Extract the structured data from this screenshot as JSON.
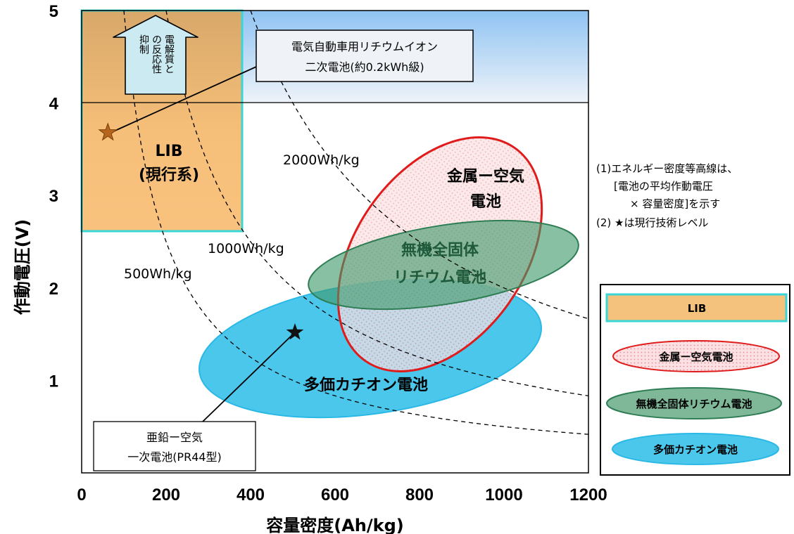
{
  "chart_data": {
    "type": "scatter",
    "xlabel": "容量密度(Ah/kg)",
    "ylabel": "作動電圧(V)",
    "xlim": [
      0,
      1200
    ],
    "ylim": [
      0,
      5
    ],
    "x_ticks": [
      "0",
      "200",
      "400",
      "600",
      "800",
      "1000",
      "1200"
    ],
    "y_ticks": [
      "1",
      "2",
      "3",
      "4",
      "5"
    ],
    "energy_contours": [
      {
        "label": "500Wh/kg",
        "wh_per_kg": 500
      },
      {
        "label": "1000Wh/kg",
        "wh_per_kg": 1000
      },
      {
        "label": "2000Wh/kg",
        "wh_per_kg": 2000
      }
    ],
    "regions": [
      {
        "name": "LIB",
        "label_lines": [
          "LIB",
          "(現行系)"
        ],
        "x_range": [
          0,
          370
        ],
        "y_range": [
          2.6,
          5
        ],
        "color": "#f5c07a"
      },
      {
        "name": "金属ー空気電池",
        "label_lines": [
          "金属ー空気",
          "電池"
        ],
        "center": [
          800,
          2.9
        ],
        "color": "#e32020"
      },
      {
        "name": "無機全固体リチウム電池",
        "label_lines": [
          "無機全固体",
          "リチウム電池"
        ],
        "center": [
          870,
          2.3
        ],
        "color": "#2e8b57"
      },
      {
        "name": "多価カチオン電池",
        "label_lines": [
          "多価カチオン電池"
        ],
        "center": [
          720,
          1.5
        ],
        "color": "#2ec4ec"
      }
    ],
    "points": [
      {
        "name": "電気自動車用リチウムイオン二次電池(約0.2kWh級)",
        "x": 62,
        "y": 3.68
      },
      {
        "name": "亜鉛ー空気一次電池(PR44型)",
        "x": 505,
        "y": 1.52
      }
    ],
    "annotations": {
      "ev_battery": [
        "電気自動車用リチウムイオン",
        "二次電池(約0.2kWh級)"
      ],
      "zinc_air": [
        "亜鉛ー空気",
        "一次電池(PR44型)"
      ],
      "arrow_text": [
        "電解質と",
        "の反応性",
        "抑制"
      ]
    },
    "notes": [
      "(1)エネルギー密度等高線は、",
      "[電池の平均作動電圧",
      "× 容量密度]を示す",
      "(2) ★は現行技術レベル"
    ],
    "legend": {
      "placement": "right",
      "entries": [
        {
          "label": "LIB",
          "color": "#f5c07a"
        },
        {
          "label": "金属ー空気電池",
          "color": "#e32020"
        },
        {
          "label": "無機全固体リチウム電池",
          "color": "#2e8b57"
        },
        {
          "label": "多価カチオン電池",
          "color": "#2ec4ec"
        }
      ]
    }
  }
}
